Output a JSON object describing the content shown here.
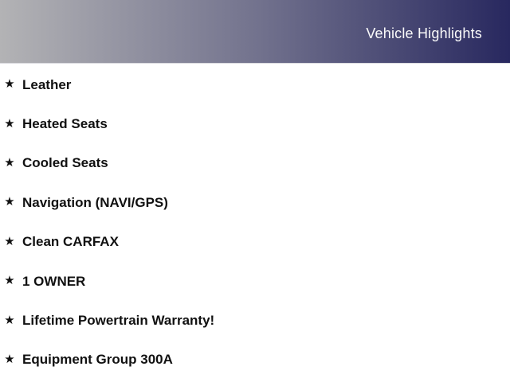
{
  "header": {
    "title": "Vehicle Highlights",
    "colors": {
      "gradient_left": "#b3b3b5",
      "gradient_mid": "#73738e",
      "gradient_right": "#28285f",
      "title_text": "#fafafa"
    }
  },
  "highlights": {
    "bullet_icon": "★",
    "text_color": "#111111",
    "items": [
      "Leather",
      "Heated Seats",
      "Cooled Seats",
      "Navigation (NAVI/GPS)",
      "Clean CARFAX",
      "1 OWNER",
      "Lifetime Powertrain Warranty!",
      "Equipment Group 300A"
    ]
  }
}
